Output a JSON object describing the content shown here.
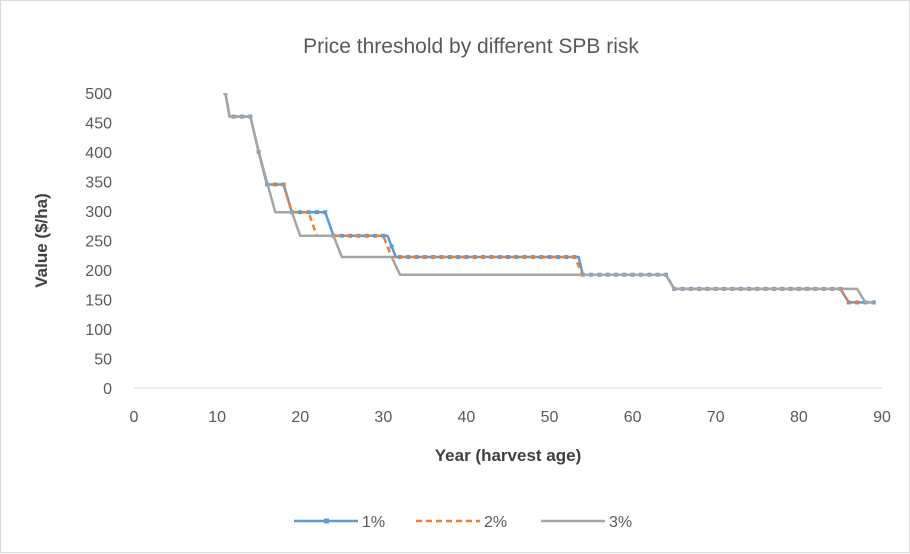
{
  "chart_data": {
    "type": "line",
    "title": "Price threshold by different SPB risk",
    "xlabel": "Year (harvest age)",
    "ylabel": "Value ($/ha)",
    "xlim": [
      0,
      90
    ],
    "ylim": [
      0,
      500
    ],
    "x_ticks": [
      0,
      10,
      20,
      30,
      40,
      50,
      60,
      70,
      80,
      90
    ],
    "y_ticks": [
      0,
      50,
      100,
      150,
      200,
      250,
      300,
      350,
      400,
      450,
      500
    ],
    "grid": false,
    "legend_position": "bottom",
    "series": [
      {
        "name": "1%",
        "color": "#5b9bd5",
        "style": "solid-markers",
        "x": [
          11,
          11.5,
          14,
          15,
          16,
          18,
          19,
          23,
          24,
          30.5,
          31.5,
          53.5,
          54,
          64,
          65,
          85,
          86,
          89
        ],
        "y": [
          500,
          460,
          460,
          400,
          345,
          345,
          298,
          298,
          258,
          258,
          222,
          222,
          192,
          192,
          168,
          168,
          145,
          145
        ]
      },
      {
        "name": "2%",
        "color": "#ed7d31",
        "style": "dashed",
        "x": [
          11,
          11.5,
          14,
          15,
          16,
          18,
          19,
          21,
          22,
          30,
          31,
          53,
          54,
          64,
          65,
          85,
          86,
          89
        ],
        "y": [
          500,
          460,
          460,
          400,
          345,
          345,
          298,
          298,
          258,
          258,
          222,
          222,
          192,
          192,
          168,
          168,
          145,
          145
        ]
      },
      {
        "name": "3%",
        "color": "#a5a5a5",
        "style": "solid",
        "x": [
          11,
          11.5,
          14,
          15,
          17,
          19,
          20,
          24,
          25,
          31,
          32,
          64,
          65,
          87,
          88,
          89
        ],
        "y": [
          500,
          460,
          460,
          400,
          298,
          298,
          258,
          258,
          222,
          222,
          192,
          192,
          168,
          168,
          145,
          145
        ]
      }
    ]
  }
}
